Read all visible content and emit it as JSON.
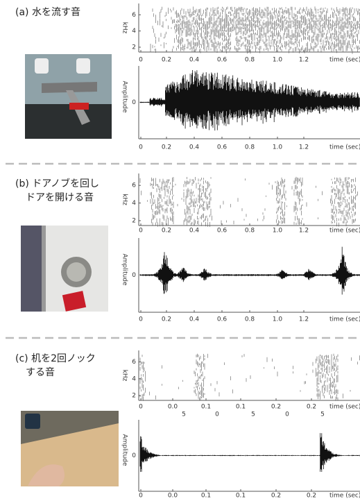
{
  "panels": [
    {
      "label": [
        "(a) 水を流す音"
      ],
      "spectrogram": {
        "ylabel": "kHz",
        "yticks": [
          "2",
          "4",
          "6"
        ],
        "xticks": [
          "0",
          "0.2",
          "0.4",
          "0.6",
          "0.8",
          "1.0",
          "1.2"
        ],
        "xlabel": "time (sec)"
      },
      "waveform": {
        "ylabel": "Amplitude",
        "ytick": "0",
        "xticks": [
          "0",
          "0.2",
          "0.4",
          "0.6",
          "0.8",
          "1.0",
          "1.2"
        ],
        "xlabel": "time (sec)"
      }
    },
    {
      "label": [
        "(b) ドアノブを回し",
        "ドアを開ける音"
      ],
      "spectrogram": {
        "ylabel": "kHz",
        "yticks": [
          "2",
          "4",
          "6"
        ],
        "xticks": [
          "0",
          "0.2",
          "0.4",
          "0.6",
          "0.8",
          "1.0",
          "1.2"
        ],
        "xlabel": "time (sec)"
      },
      "waveform": {
        "ylabel": "Amplitude",
        "ytick": "0",
        "xticks": [
          "0",
          "0.2",
          "0.4",
          "0.6",
          "0.8",
          "1.0",
          "1.2"
        ],
        "xlabel": "time (sec)"
      }
    },
    {
      "label": [
        "(c) 机を2回ノック",
        "する音"
      ],
      "spectrogram": {
        "ylabel": "kHz",
        "yticks": [
          "2",
          "4",
          "6"
        ],
        "xticks": [
          "0",
          "0.0",
          "0.1",
          "0.1",
          "0.2",
          "0.2"
        ],
        "xticks2": [
          "5",
          "0",
          "5",
          "0",
          "5"
        ],
        "xlabel": "time (sec)"
      },
      "waveform": {
        "ylabel": "Amplitude",
        "ytick": "0",
        "xticks": [
          "0",
          "0.0",
          "0.1",
          "0.1",
          "0.2",
          "0.2"
        ],
        "xlabel": "time (sec)"
      }
    }
  ]
}
